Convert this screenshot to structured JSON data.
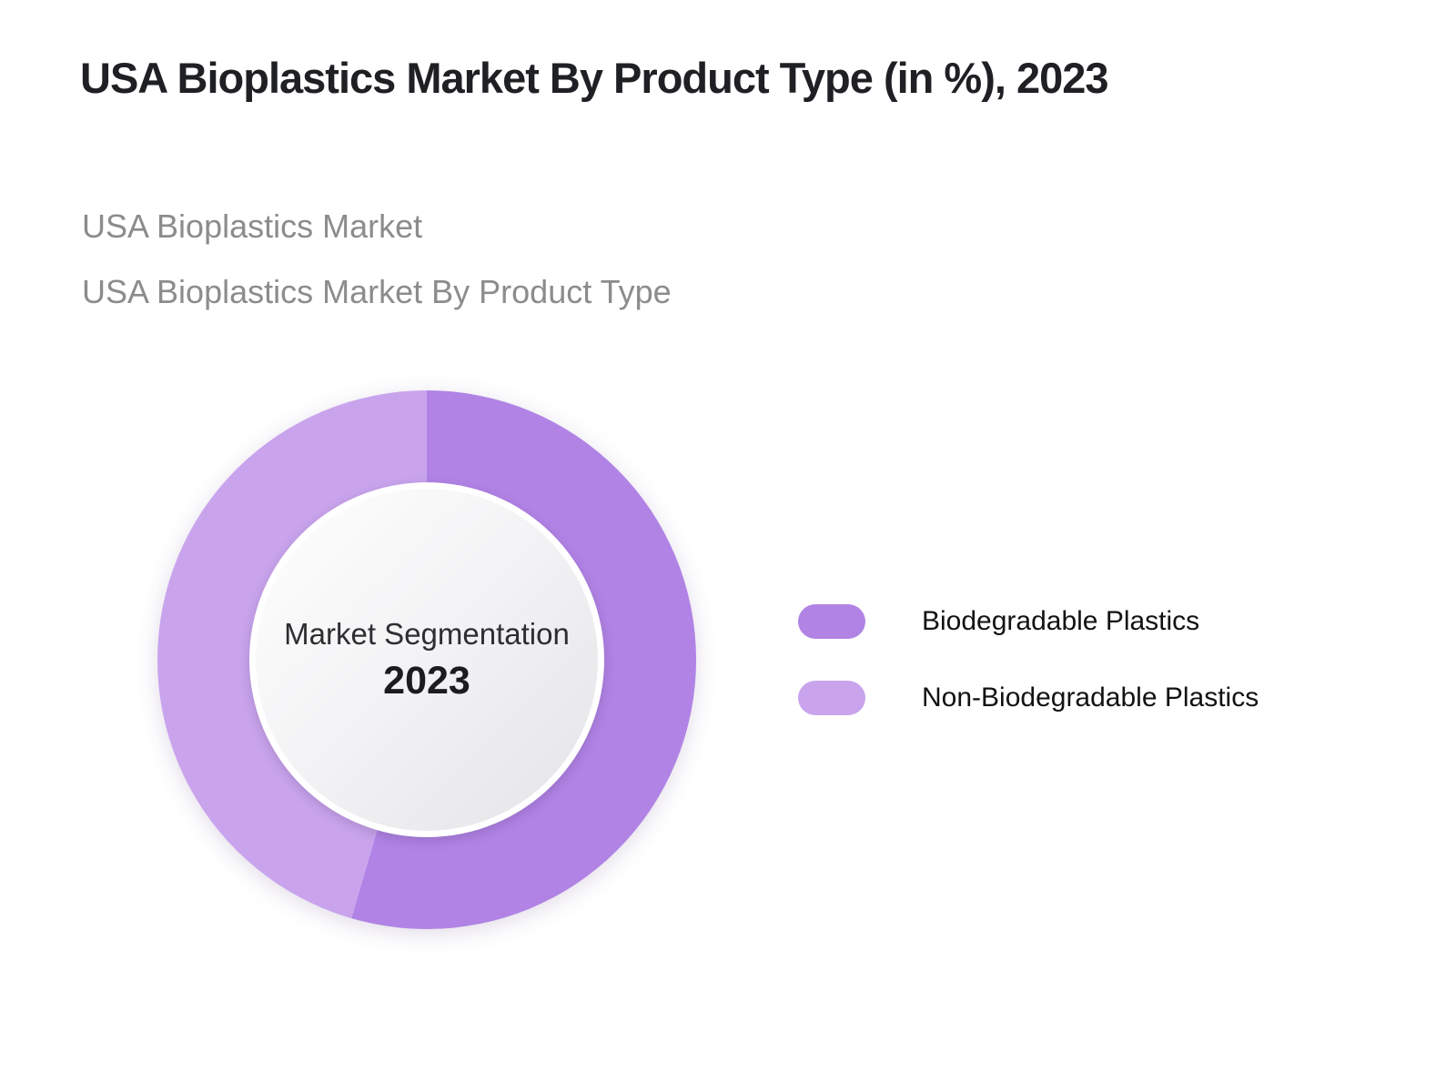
{
  "header": {
    "title": "USA Bioplastics Market By Product Type (in %), 2023",
    "subtitle_line1": "USA Bioplastics Market",
    "subtitle_line2": "USA Bioplastics Market By Product Type"
  },
  "chart_data": {
    "type": "pie",
    "variant": "donut",
    "title": "USA Bioplastics Market By Product Type (in %), 2023",
    "year": "2023",
    "unit": "%",
    "categories": [
      "Biodegradable Plastics",
      "Non-Biodegradable Plastics"
    ],
    "values": [
      54.5,
      45.5
    ],
    "colors": [
      "#b183e5",
      "#c9a4ed"
    ],
    "start_angle_deg": 0,
    "direction": "clockwise",
    "legend_position": "right",
    "center_label": {
      "line1": "Market Segmentation",
      "line2": "2023"
    }
  }
}
